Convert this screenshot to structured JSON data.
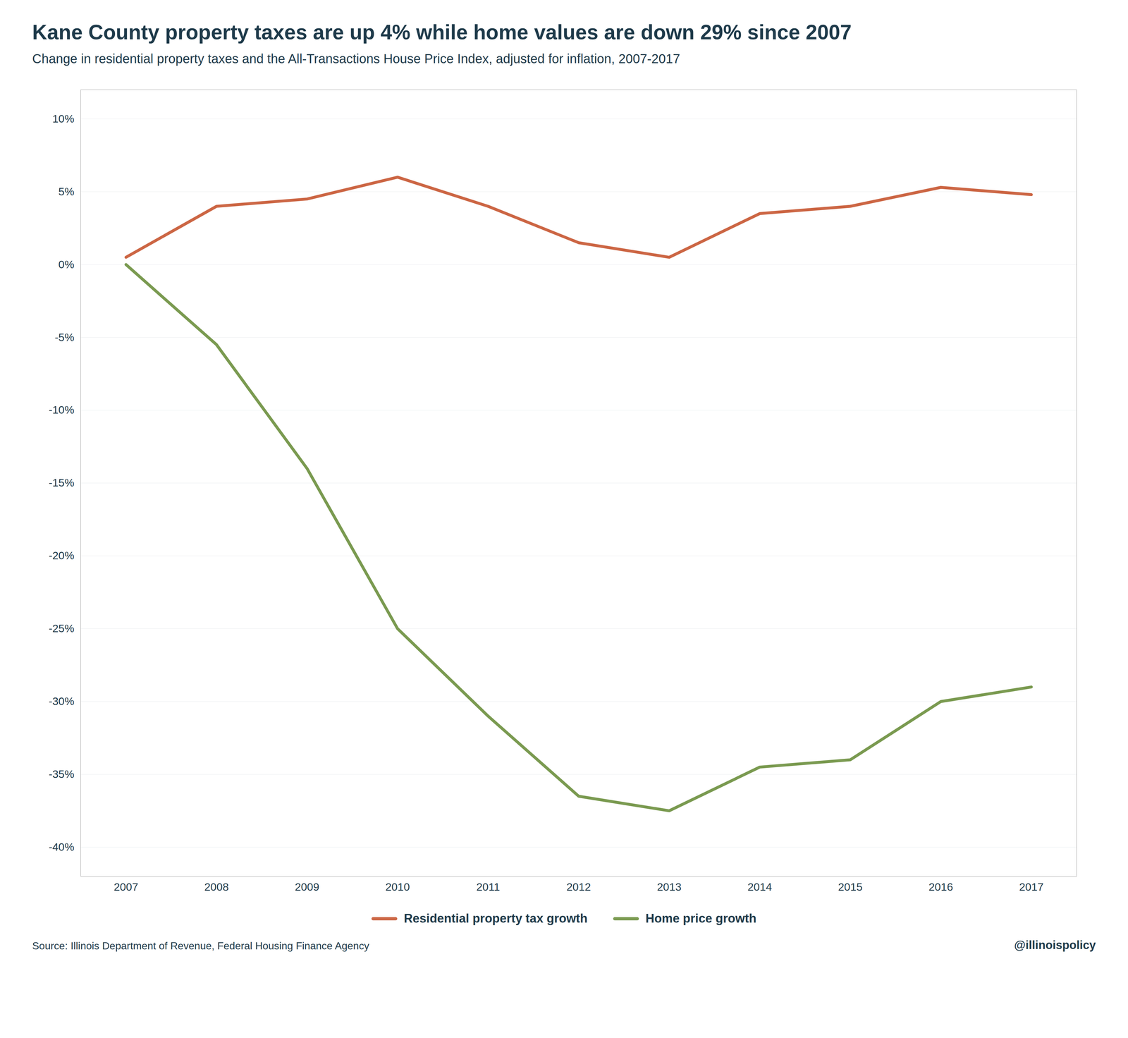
{
  "chart_data": {
    "type": "line",
    "title": "Kane County property taxes are up 4% while home values are down 29% since 2007",
    "subtitle": "Change in residential property taxes and the All-Transactions House Price Index, adjusted for inflation, 2007-2017",
    "caption": "Source:  Illinois Department of Revenue, Federal Housing Finance Agency",
    "annotations": [
      "@illinoispolicy"
    ],
    "x": [
      2007,
      2008,
      2009,
      2010,
      2011,
      2012,
      2013,
      2014,
      2015,
      2016,
      2017
    ],
    "series": [
      {
        "name": "Residential property tax growth",
        "color": "#cc6644",
        "values": [
          0.005,
          0.04,
          0.045,
          0.06,
          0.04,
          0.015,
          0.005,
          0.035,
          0.04,
          0.053,
          0.048
        ]
      },
      {
        "name": "Home price growth",
        "color": "#7a9a50",
        "values": [
          0.0,
          -0.055,
          -0.14,
          -0.25,
          -0.31,
          -0.365,
          -0.375,
          -0.345,
          -0.34,
          -0.3,
          -0.29
        ]
      }
    ],
    "xlim": [
      2006.5,
      2017.5
    ],
    "xticks": [
      2007,
      2008,
      2009,
      2010,
      2011,
      2012,
      2013,
      2014,
      2015,
      2016,
      2017
    ],
    "ylim": [
      -0.42,
      0.12
    ],
    "yticks": [
      {
        "value": 0.1,
        "label": "10%"
      },
      {
        "value": 0.05,
        "label": "5%"
      },
      {
        "value": 0.0,
        "label": "0%"
      },
      {
        "value": -0.05,
        "label": "-5%"
      },
      {
        "value": -0.1,
        "label": "-10%"
      },
      {
        "value": -0.15,
        "label": "-15%"
      },
      {
        "value": -0.2,
        "label": "-20%"
      },
      {
        "value": -0.25,
        "label": "-25%"
      },
      {
        "value": -0.3,
        "label": "-30%"
      },
      {
        "value": -0.35,
        "label": "-35%"
      },
      {
        "value": -0.4,
        "label": "-40%"
      }
    ],
    "grid": true,
    "legend": "bottom"
  }
}
